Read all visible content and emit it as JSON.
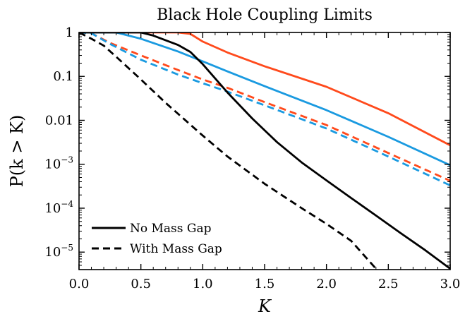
{
  "chart_data": {
    "type": "line",
    "title": "Black Hole Coupling Limits",
    "xlabel": "K",
    "ylabel": "P(k > K)",
    "xlim": [
      0.0,
      3.0
    ],
    "ylim": [
      4e-06,
      1.0
    ],
    "yscale": "log",
    "grid": false,
    "legend_placement": "bottom-left",
    "x_ticks": [
      {
        "value": 0.0,
        "label": "0.0"
      },
      {
        "value": 0.5,
        "label": "0.5"
      },
      {
        "value": 1.0,
        "label": "1.0"
      },
      {
        "value": 1.5,
        "label": "1.5"
      },
      {
        "value": 2.0,
        "label": "2.0"
      },
      {
        "value": 2.5,
        "label": "2.5"
      },
      {
        "value": 3.0,
        "label": "3.0"
      }
    ],
    "y_ticks": [
      {
        "value": 1,
        "label": "1",
        "mantissa": "1",
        "exp": ""
      },
      {
        "value": 0.1,
        "label": "0.1",
        "mantissa": "0.1",
        "exp": ""
      },
      {
        "value": 0.01,
        "label": "0.01",
        "mantissa": "0.01",
        "exp": ""
      },
      {
        "value": 0.001,
        "label": "10^-3",
        "mantissa": "10",
        "exp": "−3"
      },
      {
        "value": 0.0001,
        "label": "10^-4",
        "mantissa": "10",
        "exp": "−4"
      },
      {
        "value": 1e-05,
        "label": "10^-5",
        "mantissa": "10",
        "exp": "−5"
      }
    ],
    "legend": [
      {
        "label": "No Mass Gap",
        "style": "solid",
        "color": "#000000"
      },
      {
        "label": "With Mass Gap",
        "style": "dashed",
        "color": "#000000"
      }
    ],
    "series": [
      {
        "color": "#ff4a1c",
        "style": "solid",
        "points": [
          [
            0.0,
            1.0
          ],
          [
            0.8,
            1.0
          ],
          [
            0.9,
            0.93
          ],
          [
            1.0,
            0.62
          ],
          [
            1.2,
            0.35
          ],
          [
            1.5,
            0.17
          ],
          [
            2.0,
            0.058
          ],
          [
            2.5,
            0.0145
          ],
          [
            3.0,
            0.0027
          ]
        ]
      },
      {
        "color": "#1a9ae0",
        "style": "solid",
        "points": [
          [
            0.0,
            1.0
          ],
          [
            0.3,
            1.0
          ],
          [
            0.5,
            0.72
          ],
          [
            0.8,
            0.37
          ],
          [
            1.0,
            0.22
          ],
          [
            1.2,
            0.13
          ],
          [
            1.5,
            0.06
          ],
          [
            2.0,
            0.017
          ],
          [
            2.5,
            0.0042
          ],
          [
            3.0,
            0.00095
          ]
        ]
      },
      {
        "color": "#ff4a1c",
        "style": "dashed",
        "points": [
          [
            0.0,
            1.0
          ],
          [
            0.1,
            0.96
          ],
          [
            0.25,
            0.58
          ],
          [
            0.5,
            0.3
          ],
          [
            0.8,
            0.14
          ],
          [
            1.0,
            0.085
          ],
          [
            1.2,
            0.055
          ],
          [
            1.5,
            0.026
          ],
          [
            2.0,
            0.0078
          ],
          [
            2.5,
            0.0018
          ],
          [
            3.0,
            0.00042
          ]
        ]
      },
      {
        "color": "#1a9ae0",
        "style": "dashed",
        "points": [
          [
            0.0,
            1.0
          ],
          [
            0.1,
            0.96
          ],
          [
            0.25,
            0.55
          ],
          [
            0.5,
            0.24
          ],
          [
            0.8,
            0.11
          ],
          [
            1.0,
            0.07
          ],
          [
            1.2,
            0.045
          ],
          [
            1.5,
            0.022
          ],
          [
            2.0,
            0.0065
          ],
          [
            2.5,
            0.0015
          ],
          [
            3.0,
            0.00033
          ]
        ]
      },
      {
        "color": "#000000",
        "style": "solid",
        "points": [
          [
            0.0,
            1.0
          ],
          [
            0.5,
            1.0
          ],
          [
            0.6,
            0.85
          ],
          [
            0.8,
            0.52
          ],
          [
            0.9,
            0.36
          ],
          [
            1.0,
            0.19
          ],
          [
            1.2,
            0.043
          ],
          [
            1.4,
            0.011
          ],
          [
            1.6,
            0.0032
          ],
          [
            1.8,
            0.0011
          ],
          [
            2.0,
            0.00043
          ],
          [
            2.2,
            0.00017
          ],
          [
            2.4,
            6.8e-05
          ],
          [
            2.6,
            2.7e-05
          ],
          [
            2.8,
            1.1e-05
          ],
          [
            3.0,
            4.2e-06
          ]
        ]
      },
      {
        "color": "#000000",
        "style": "dashed",
        "points": [
          [
            0.0,
            1.0
          ],
          [
            0.1,
            0.72
          ],
          [
            0.2,
            0.5
          ],
          [
            0.3,
            0.28
          ],
          [
            0.5,
            0.085
          ],
          [
            0.7,
            0.025
          ],
          [
            1.0,
            0.0045
          ],
          [
            1.2,
            0.0015
          ],
          [
            1.5,
            0.00036
          ],
          [
            1.8,
            0.0001
          ],
          [
            2.0,
            4.4e-05
          ],
          [
            2.2,
            1.8e-05
          ],
          [
            2.4,
            4.2e-06
          ]
        ]
      }
    ]
  }
}
